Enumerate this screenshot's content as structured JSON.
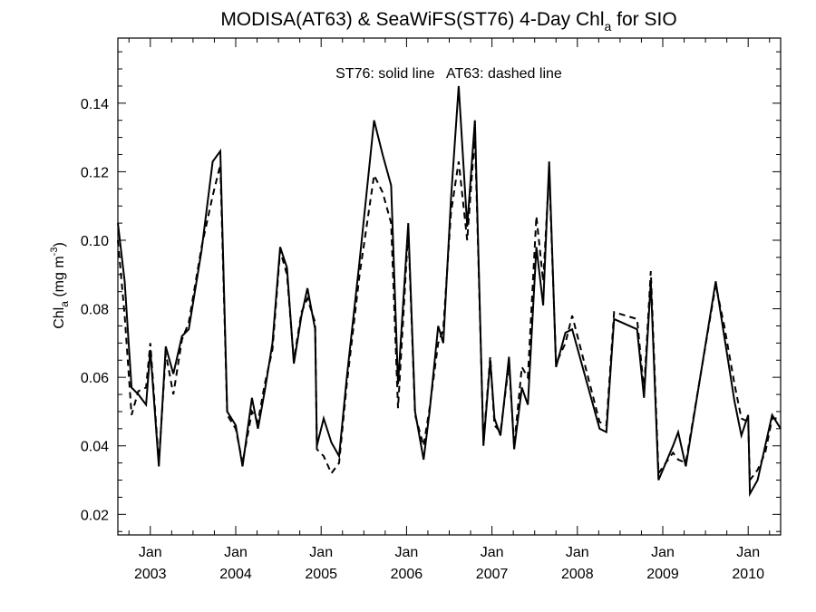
{
  "chart_data": {
    "type": "line",
    "title_main": "MODISA(AT63) & SeaWiFS(ST76) 4-Day Chl",
    "title_sub": "a",
    "title_tail": " for SIO",
    "annotation": "ST76: solid line   AT63: dashed line",
    "ylabel_main": "Chl",
    "ylabel_sub": "a",
    "ylabel_unit": " (mg m",
    "ylabel_sup": "-3",
    "ylabel_close": ")",
    "xlim": [
      2002.62,
      2010.38
    ],
    "ylim": [
      0.014,
      0.159
    ],
    "yticks": [
      {
        "value": 0.02,
        "label": "0.02"
      },
      {
        "value": 0.04,
        "label": "0.04"
      },
      {
        "value": 0.06,
        "label": "0.06"
      },
      {
        "value": 0.08,
        "label": "0.08"
      },
      {
        "value": 0.1,
        "label": "0.10"
      },
      {
        "value": 0.12,
        "label": "0.12"
      },
      {
        "value": 0.14,
        "label": "0.14"
      }
    ],
    "xticks": [
      {
        "value": 2003.0,
        "label1": "Jan",
        "label2": "2003"
      },
      {
        "value": 2004.0,
        "label1": "Jan",
        "label2": "2004"
      },
      {
        "value": 2005.0,
        "label1": "Jan",
        "label2": "2005"
      },
      {
        "value": 2006.0,
        "label1": "Jan",
        "label2": "2006"
      },
      {
        "value": 2007.0,
        "label1": "Jan",
        "label2": "2007"
      },
      {
        "value": 2008.0,
        "label1": "Jan",
        "label2": "2008"
      },
      {
        "value": 2009.0,
        "label1": "Jan",
        "label2": "2009"
      },
      {
        "value": 2010.0,
        "label1": "Jan",
        "label2": "2010"
      }
    ],
    "series": [
      {
        "name": "ST76",
        "style": "solid",
        "points": [
          [
            2002.62,
            0.105
          ],
          [
            2002.7,
            0.088
          ],
          [
            2002.78,
            0.057
          ],
          [
            2002.86,
            0.055
          ],
          [
            2002.95,
            0.052
          ],
          [
            2003.0,
            0.068
          ],
          [
            2003.1,
            0.034
          ],
          [
            2003.18,
            0.069
          ],
          [
            2003.27,
            0.061
          ],
          [
            2003.37,
            0.072
          ],
          [
            2003.45,
            0.074
          ],
          [
            2003.6,
            0.097
          ],
          [
            2003.73,
            0.123
          ],
          [
            2003.82,
            0.126
          ],
          [
            2003.9,
            0.05
          ],
          [
            2004.0,
            0.046
          ],
          [
            2004.08,
            0.034
          ],
          [
            2004.19,
            0.054
          ],
          [
            2004.26,
            0.045
          ],
          [
            2004.34,
            0.056
          ],
          [
            2004.43,
            0.07
          ],
          [
            2004.52,
            0.098
          ],
          [
            2004.6,
            0.092
          ],
          [
            2004.68,
            0.064
          ],
          [
            2004.77,
            0.078
          ],
          [
            2004.84,
            0.086
          ],
          [
            2004.93,
            0.074
          ],
          [
            2004.95,
            0.04
          ],
          [
            2005.03,
            0.048
          ],
          [
            2005.12,
            0.041
          ],
          [
            2005.21,
            0.037
          ],
          [
            2005.3,
            0.06
          ],
          [
            2005.45,
            0.094
          ],
          [
            2005.62,
            0.135
          ],
          [
            2005.72,
            0.125
          ],
          [
            2005.82,
            0.116
          ],
          [
            2005.9,
            0.058
          ],
          [
            2006.02,
            0.105
          ],
          [
            2006.1,
            0.05
          ],
          [
            2006.2,
            0.036
          ],
          [
            2006.27,
            0.05
          ],
          [
            2006.37,
            0.075
          ],
          [
            2006.43,
            0.07
          ],
          [
            2006.52,
            0.112
          ],
          [
            2006.61,
            0.145
          ],
          [
            2006.71,
            0.104
          ],
          [
            2006.8,
            0.135
          ],
          [
            2006.9,
            0.04
          ],
          [
            2006.98,
            0.065
          ],
          [
            2007.03,
            0.048
          ],
          [
            2007.1,
            0.043
          ],
          [
            2007.2,
            0.066
          ],
          [
            2007.26,
            0.039
          ],
          [
            2007.35,
            0.057
          ],
          [
            2007.42,
            0.052
          ],
          [
            2007.52,
            0.098
          ],
          [
            2007.6,
            0.081
          ],
          [
            2007.67,
            0.123
          ],
          [
            2007.75,
            0.063
          ],
          [
            2007.86,
            0.073
          ],
          [
            2007.94,
            0.074
          ],
          [
            2008.26,
            0.045
          ],
          [
            2008.34,
            0.044
          ],
          [
            2008.43,
            0.077
          ],
          [
            2008.7,
            0.074
          ],
          [
            2008.78,
            0.054
          ],
          [
            2008.86,
            0.088
          ],
          [
            2008.95,
            0.03
          ],
          [
            2009.12,
            0.04
          ],
          [
            2009.18,
            0.044
          ],
          [
            2009.27,
            0.034
          ],
          [
            2009.62,
            0.088
          ],
          [
            2009.72,
            0.072
          ],
          [
            2009.84,
            0.053
          ],
          [
            2009.92,
            0.043
          ],
          [
            2010.0,
            0.049
          ],
          [
            2010.02,
            0.026
          ],
          [
            2010.11,
            0.03
          ],
          [
            2010.2,
            0.04
          ],
          [
            2010.28,
            0.049
          ],
          [
            2010.38,
            0.045
          ]
        ]
      },
      {
        "name": "AT63",
        "style": "dashed",
        "points": [
          [
            2002.62,
            0.1
          ],
          [
            2002.7,
            0.078
          ],
          [
            2002.78,
            0.049
          ],
          [
            2002.86,
            0.056
          ],
          [
            2002.95,
            0.057
          ],
          [
            2003.0,
            0.07
          ],
          [
            2003.1,
            0.035
          ],
          [
            2003.18,
            0.067
          ],
          [
            2003.27,
            0.055
          ],
          [
            2003.37,
            0.071
          ],
          [
            2003.45,
            0.076
          ],
          [
            2003.6,
            0.098
          ],
          [
            2003.73,
            0.113
          ],
          [
            2003.82,
            0.122
          ],
          [
            2003.9,
            0.049
          ],
          [
            2004.0,
            0.045
          ],
          [
            2004.08,
            0.035
          ],
          [
            2004.19,
            0.05
          ],
          [
            2004.26,
            0.047
          ],
          [
            2004.34,
            0.058
          ],
          [
            2004.43,
            0.068
          ],
          [
            2004.52,
            0.097
          ],
          [
            2004.6,
            0.09
          ],
          [
            2004.68,
            0.065
          ],
          [
            2004.77,
            0.079
          ],
          [
            2004.84,
            0.083
          ],
          [
            2004.93,
            0.076
          ],
          [
            2004.95,
            0.039
          ],
          [
            2005.03,
            0.037
          ],
          [
            2005.12,
            0.032
          ],
          [
            2005.21,
            0.035
          ],
          [
            2005.3,
            0.058
          ],
          [
            2005.45,
            0.09
          ],
          [
            2005.62,
            0.119
          ],
          [
            2005.72,
            0.114
          ],
          [
            2005.82,
            0.105
          ],
          [
            2005.9,
            0.051
          ],
          [
            2006.02,
            0.103
          ],
          [
            2006.1,
            0.049
          ],
          [
            2006.2,
            0.04
          ],
          [
            2006.27,
            0.051
          ],
          [
            2006.37,
            0.07
          ],
          [
            2006.43,
            0.074
          ],
          [
            2006.52,
            0.108
          ],
          [
            2006.61,
            0.123
          ],
          [
            2006.71,
            0.1
          ],
          [
            2006.8,
            0.131
          ],
          [
            2006.9,
            0.041
          ],
          [
            2006.98,
            0.066
          ],
          [
            2007.03,
            0.046
          ],
          [
            2007.1,
            0.044
          ],
          [
            2007.2,
            0.064
          ],
          [
            2007.26,
            0.04
          ],
          [
            2007.35,
            0.063
          ],
          [
            2007.42,
            0.06
          ],
          [
            2007.52,
            0.107
          ],
          [
            2007.6,
            0.088
          ],
          [
            2007.67,
            0.12
          ],
          [
            2007.75,
            0.064
          ],
          [
            2007.86,
            0.07
          ],
          [
            2007.94,
            0.078
          ],
          [
            2008.26,
            0.047
          ],
          [
            2008.34,
            0.046
          ],
          [
            2008.43,
            0.079
          ],
          [
            2008.7,
            0.077
          ],
          [
            2008.78,
            0.056
          ],
          [
            2008.86,
            0.091
          ],
          [
            2008.95,
            0.032
          ],
          [
            2009.12,
            0.038
          ],
          [
            2009.18,
            0.036
          ],
          [
            2009.27,
            0.035
          ],
          [
            2009.62,
            0.087
          ],
          [
            2009.72,
            0.075
          ],
          [
            2009.84,
            0.058
          ],
          [
            2009.92,
            0.048
          ],
          [
            2010.0,
            0.047
          ],
          [
            2010.02,
            0.03
          ],
          [
            2010.11,
            0.033
          ],
          [
            2010.2,
            0.038
          ],
          [
            2010.28,
            0.048
          ],
          [
            2010.38,
            0.048
          ]
        ]
      }
    ]
  }
}
